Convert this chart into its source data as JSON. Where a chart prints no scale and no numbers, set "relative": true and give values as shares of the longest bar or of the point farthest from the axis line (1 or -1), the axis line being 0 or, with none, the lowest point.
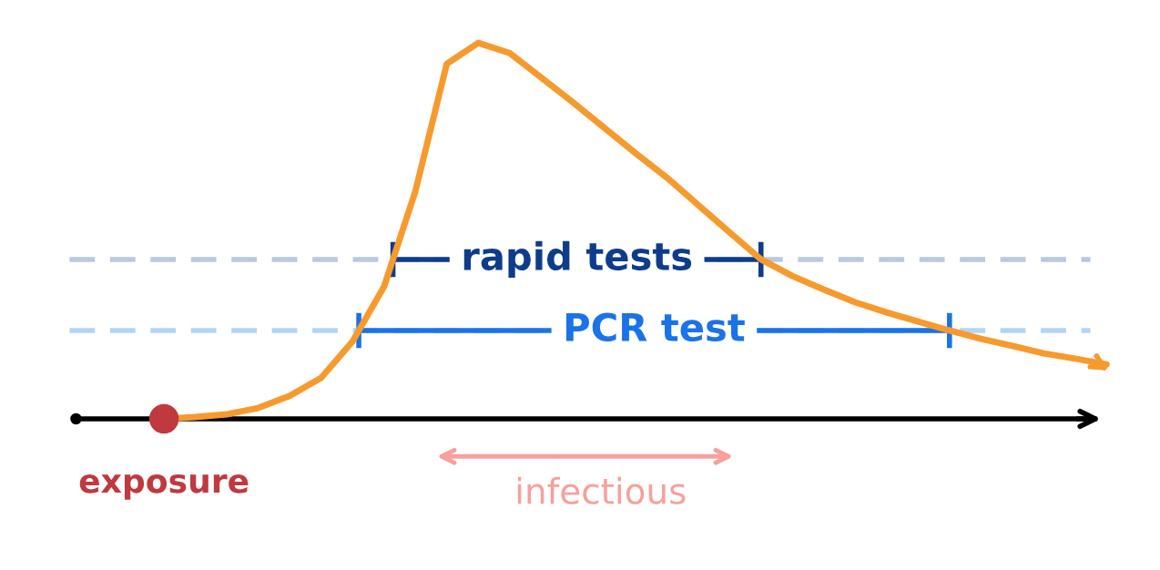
{
  "chart_data": {
    "type": "line",
    "relative": true,
    "categories": [
      null,
      null,
      null,
      null,
      null,
      null,
      null,
      null,
      null,
      null,
      null,
      null,
      null,
      null,
      null,
      null,
      null,
      null,
      null,
      null,
      null,
      null,
      null,
      null,
      null,
      null,
      null,
      null,
      null,
      null,
      null
    ],
    "series": [
      {
        "color": "#f79a2e",
        "values": [
          0,
          0.005,
          0.012,
          0.029,
          0.061,
          0.109,
          0.206,
          0.351,
          0.605,
          0.944,
          1,
          0.973,
          0.908,
          0.843,
          0.775,
          0.707,
          0.642,
          0.569,
          0.496,
          0.424,
          0.38,
          0.344,
          0.31,
          0.283,
          0.259,
          0.235,
          0.213,
          0.194,
          0.174,
          0.16,
          0.145
        ]
      }
    ],
    "ref_lines": [
      {
        "axis": "y",
        "value": 0.424,
        "label": "rapid tests",
        "color": "#b8c9e0",
        "line_style": "dashed"
      },
      {
        "axis": "y",
        "value": 0.235,
        "label": "PCR test",
        "color": "#b3d4f8",
        "line_style": "dashed"
      }
    ],
    "annotations": [
      "exposure",
      "infectious"
    ],
    "legend": false,
    "marker": "none",
    "line_style": "solid"
  }
}
